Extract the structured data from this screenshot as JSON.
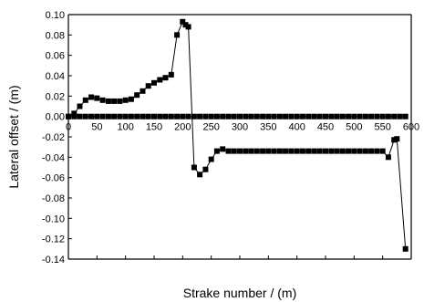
{
  "chart_data": {
    "type": "line",
    "xlabel": "Strake number / (m)",
    "ylabel": "Lateral offset / (m)",
    "xlim": [
      0,
      600
    ],
    "ylim": [
      -0.14,
      0.1
    ],
    "x_ticks": [
      0,
      50,
      100,
      150,
      200,
      250,
      300,
      350,
      400,
      450,
      500,
      550,
      600
    ],
    "y_ticks": [
      -0.14,
      -0.12,
      -0.1,
      -0.08,
      -0.06,
      -0.04,
      -0.02,
      0.0,
      0.02,
      0.04,
      0.06,
      0.08,
      0.1
    ],
    "x_tick_labels": [
      "0",
      "50",
      "100",
      "150",
      "200",
      "250",
      "300",
      "350",
      "400",
      "450",
      "500",
      "550",
      "600"
    ],
    "y_tick_labels": [
      "-0.14",
      "-0.12",
      "-0.10",
      "-0.08",
      "-0.06",
      "-0.04",
      "-0.02",
      "0.00",
      "0.02",
      "0.04",
      "0.06",
      "0.08",
      "0.10"
    ],
    "grid": false,
    "marker": "square",
    "color": "#000000",
    "series": [
      {
        "x": [
          0,
          10,
          20,
          30,
          40,
          50,
          60,
          70,
          80,
          90,
          100,
          110,
          120,
          130,
          140,
          150,
          160,
          170,
          180,
          190,
          200,
          205,
          210,
          220,
          230,
          240,
          250,
          260,
          270,
          280,
          290,
          300,
          310,
          320,
          330,
          340,
          350,
          360,
          370,
          380,
          390,
          400,
          410,
          420,
          430,
          440,
          450,
          460,
          470,
          480,
          490,
          500,
          510,
          520,
          530,
          540,
          550,
          560,
          570,
          575,
          590
        ],
        "y": [
          0.0,
          0.003,
          0.01,
          0.016,
          0.019,
          0.018,
          0.016,
          0.015,
          0.015,
          0.015,
          0.016,
          0.017,
          0.021,
          0.025,
          0.03,
          0.033,
          0.036,
          0.038,
          0.041,
          0.08,
          0.093,
          0.09,
          0.088,
          -0.05,
          -0.057,
          -0.052,
          -0.042,
          -0.034,
          -0.032,
          -0.034,
          -0.034,
          -0.034,
          -0.034,
          -0.034,
          -0.034,
          -0.034,
          -0.034,
          -0.034,
          -0.034,
          -0.034,
          -0.034,
          -0.034,
          -0.034,
          -0.034,
          -0.034,
          -0.034,
          -0.034,
          -0.034,
          -0.034,
          -0.034,
          -0.034,
          -0.034,
          -0.034,
          -0.034,
          -0.034,
          -0.034,
          -0.034,
          -0.04,
          -0.023,
          -0.022,
          -0.13
        ]
      },
      {
        "x": [
          0,
          10,
          20,
          30,
          40,
          50,
          60,
          70,
          80,
          90,
          100,
          110,
          120,
          130,
          140,
          150,
          160,
          170,
          180,
          190,
          200,
          210,
          220,
          230,
          240,
          250,
          260,
          270,
          280,
          290,
          300,
          310,
          320,
          330,
          340,
          350,
          360,
          370,
          380,
          390,
          400,
          410,
          420,
          430,
          440,
          450,
          460,
          470,
          480,
          490,
          500,
          510,
          520,
          530,
          540,
          550,
          560,
          570,
          580,
          590
        ],
        "y": [
          0.0,
          0.0,
          0.0,
          0.0,
          0.0,
          0.0,
          0.0,
          0.0,
          0.0,
          0.0,
          0.0,
          0.0,
          0.0,
          0.0,
          0.0,
          0.0,
          0.0,
          0.0,
          0.0,
          0.0,
          0.0,
          0.0,
          0.0,
          0.0,
          0.0,
          0.0,
          0.0,
          0.0,
          0.0,
          0.0,
          0.0,
          0.0,
          0.0,
          0.0,
          0.0,
          0.0,
          0.0,
          0.0,
          0.0,
          0.0,
          0.0,
          0.0,
          0.0,
          0.0,
          0.0,
          0.0,
          0.0,
          0.0,
          0.0,
          0.0,
          0.0,
          0.0,
          0.0,
          0.0,
          0.0,
          0.0,
          0.0,
          0.0,
          0.0,
          0.0
        ]
      }
    ]
  }
}
